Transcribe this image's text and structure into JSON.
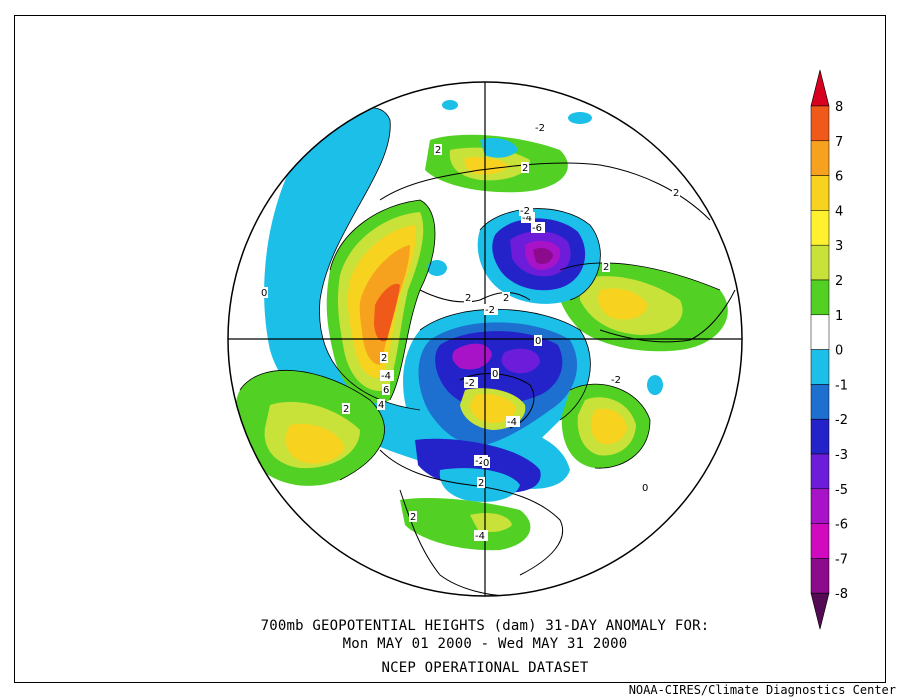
{
  "map": {
    "title_line1": "700mb GEOPOTENTIAL HEIGHTS (dam)   31-DAY ANOMALY FOR:",
    "title_line2": "Mon MAY 01 2000 - Wed MAY 31 2000",
    "title_line3": "NCEP OPERATIONAL DATASET",
    "credit": "NOAA-CIRES/Climate Diagnostics Center",
    "projection": "north polar stereographic",
    "contour_labels": [
      "2",
      "2",
      "-4",
      "-6",
      "-2",
      "2",
      "-2",
      "2",
      "-4",
      "6",
      "4",
      "2",
      "0",
      "-2",
      "0",
      "-4",
      "-2",
      "2",
      "2",
      "-4",
      "-2",
      "-2",
      "2",
      "2",
      "0",
      "2",
      "0",
      "0"
    ]
  },
  "colorbar": {
    "labels": [
      "8",
      "7",
      "6",
      "4",
      "3",
      "2",
      "1",
      "0",
      "-1",
      "-2",
      "-3",
      "-5",
      "-6",
      "-7",
      "-8"
    ],
    "colors": {
      "8": "#d7001e",
      "7": "#ef5a1a",
      "6": "#f7a21e",
      "4": "#f7d21e",
      "3": "#fff030",
      "2": "#c8e23a",
      "1": "#52d124",
      "0": "#ffffff",
      "-1": "#1bbfe8",
      "-2": "#1d70cf",
      "-3": "#2323c9",
      "-5": "#6d1dd9",
      "-6": "#a913c8",
      "-7": "#d10ac0",
      "-8": "#8c0a8c",
      "-9": "#550a55"
    }
  }
}
